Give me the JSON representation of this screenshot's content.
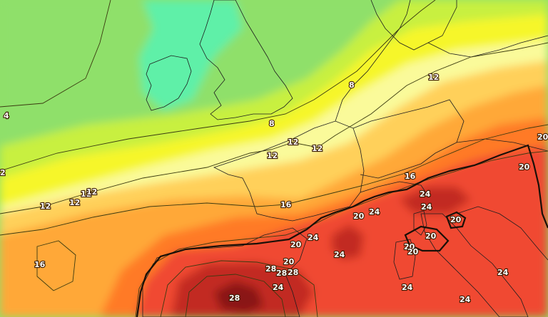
{
  "map": {
    "contour_labels": [
      {
        "id": "4-west",
        "text": "4"
      },
      {
        "id": "2-west",
        "text": "2"
      },
      {
        "id": "8-channel",
        "text": "8"
      },
      {
        "id": "8-northsea",
        "text": "8"
      },
      {
        "id": "12-germany",
        "text": "12"
      },
      {
        "id": "12-belgium",
        "text": "12"
      },
      {
        "id": "12-france-a",
        "text": "12"
      },
      {
        "id": "12-france-b",
        "text": "12"
      },
      {
        "id": "12-biscay-a",
        "text": "12"
      },
      {
        "id": "12-biscay-b",
        "text": "12"
      },
      {
        "id": "12-biscay-c",
        "text": "12"
      },
      {
        "id": "12-atlantic",
        "text": "12"
      },
      {
        "id": "16-atlantic",
        "text": "16"
      },
      {
        "id": "16-france",
        "text": "16"
      },
      {
        "id": "16-alps",
        "text": "16"
      },
      {
        "id": "20-east",
        "text": "20"
      },
      {
        "id": "20-austria",
        "text": "20"
      },
      {
        "id": "20-lyon",
        "text": "20"
      },
      {
        "id": "20-pyrenees",
        "text": "20"
      },
      {
        "id": "20-spain-north",
        "text": "20"
      },
      {
        "id": "20-italy-a",
        "text": "20"
      },
      {
        "id": "20-italy-b",
        "text": "20"
      },
      {
        "id": "20-italy-c",
        "text": "20"
      },
      {
        "id": "20-italy-d",
        "text": "20"
      },
      {
        "id": "24-alps",
        "text": "24"
      },
      {
        "id": "24-po",
        "text": "24"
      },
      {
        "id": "24-provence",
        "text": "24"
      },
      {
        "id": "24-catalonia",
        "text": "24"
      },
      {
        "id": "24-ebro",
        "text": "24"
      },
      {
        "id": "24-spain-center",
        "text": "24"
      },
      {
        "id": "24-tyrrhenian",
        "text": "24"
      },
      {
        "id": "24-italy-south",
        "text": "24"
      },
      {
        "id": "24-adriatic",
        "text": "24"
      },
      {
        "id": "28-madrid-a",
        "text": "28"
      },
      {
        "id": "28-madrid-b",
        "text": "28"
      },
      {
        "id": "28-madrid-c",
        "text": "28"
      },
      {
        "id": "28-andalusia",
        "text": "28"
      }
    ],
    "colors": {
      "cold_green": "#8fe06a",
      "aqua": "#5ff0a8",
      "lime": "#c8f040",
      "yellow": "#f6f62a",
      "pale_yellow": "#fafa9a",
      "gold": "#ffd05a",
      "orange": "#ffa838",
      "deep_orange": "#ff7a28",
      "red": "#f04a30",
      "dark_red": "#c22a20",
      "maroon": "#8a1414"
    }
  }
}
